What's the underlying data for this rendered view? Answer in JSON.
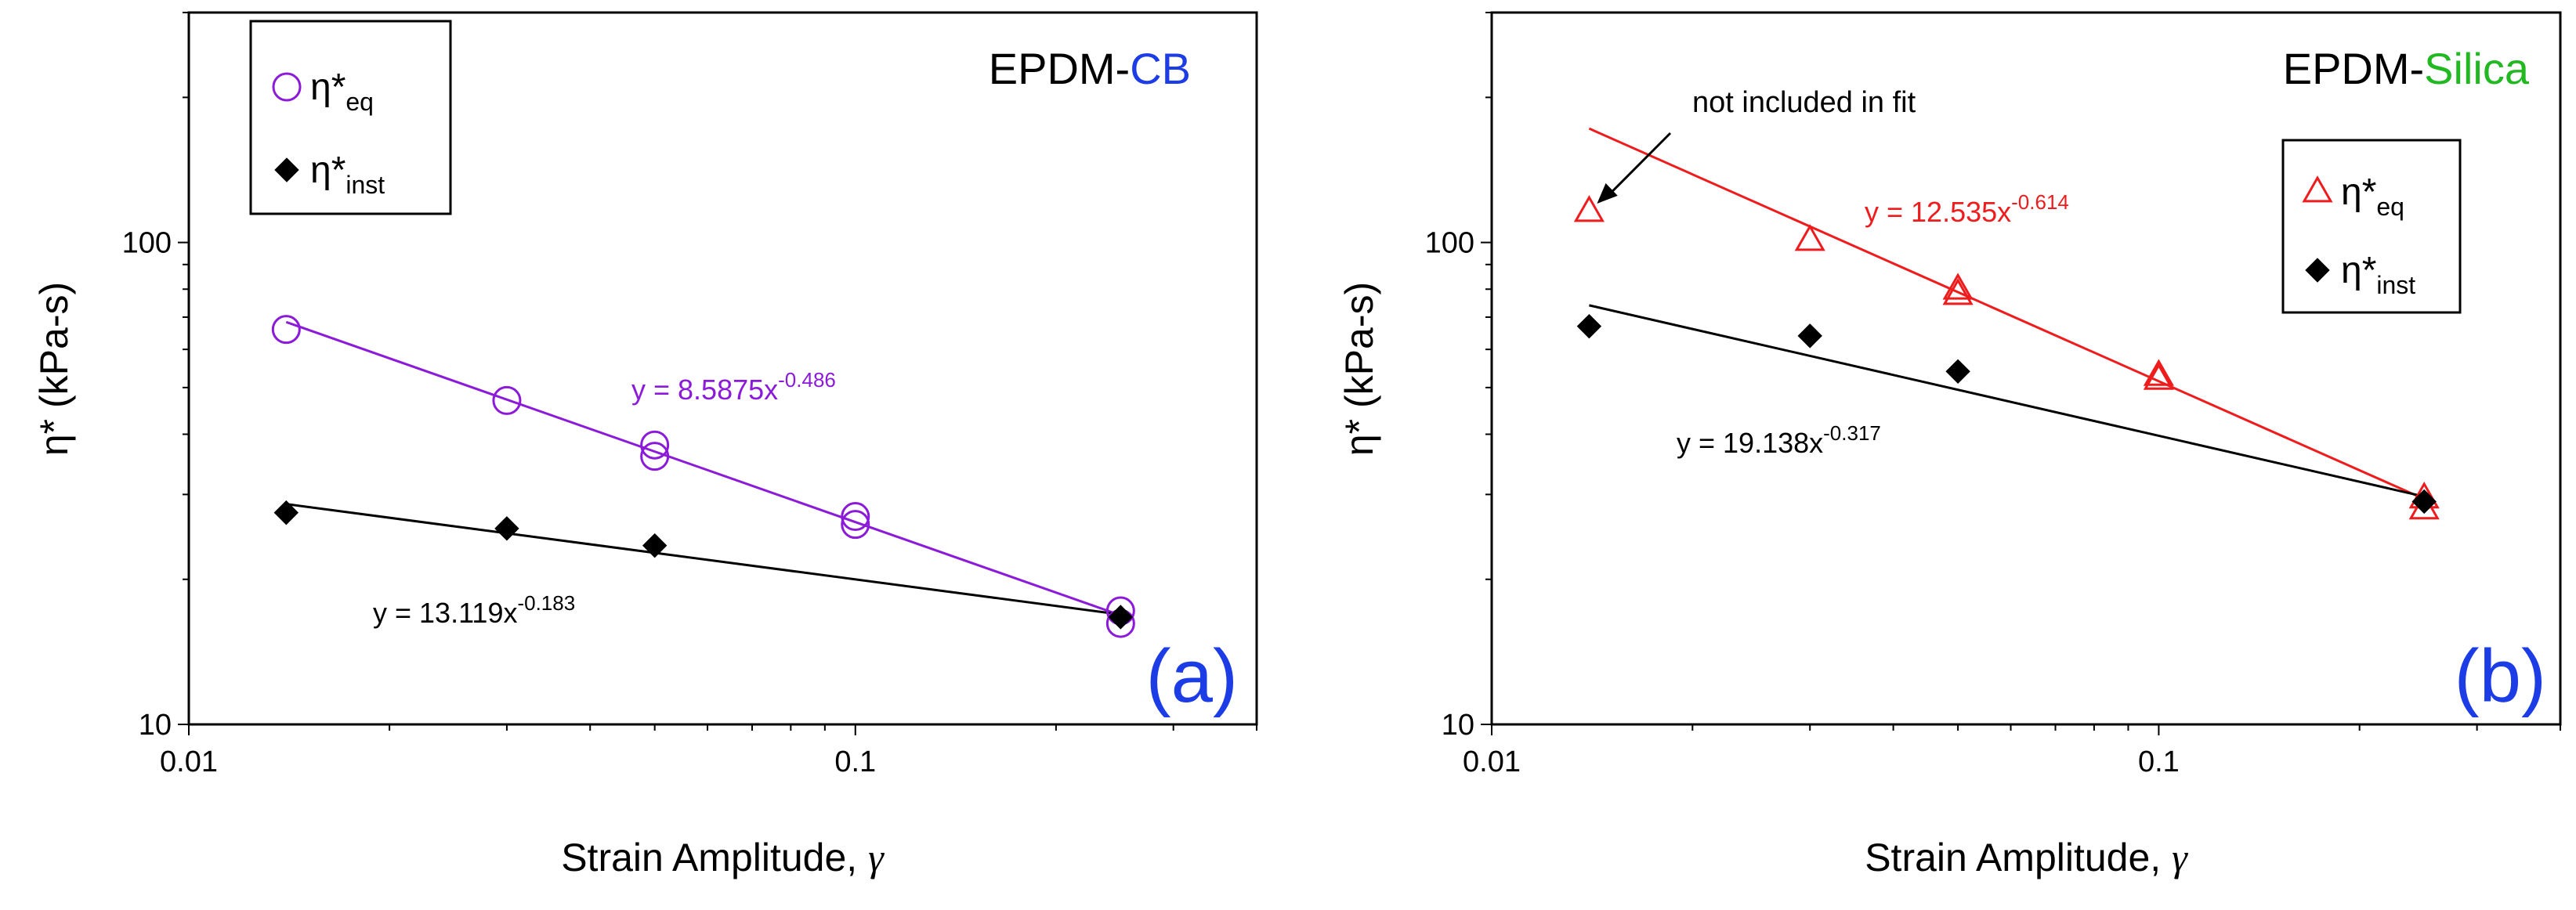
{
  "colors": {
    "purple": "#8c1ad9",
    "red": "#ee1c1c",
    "black": "#000000",
    "blue": "#1c3ce6",
    "green": "#22b822"
  },
  "chart_data": [
    {
      "type": "scatter",
      "scale": "log-log",
      "panel_label": "(a)",
      "title_parts": {
        "base": "EPDM-",
        "filler": "CB"
      },
      "xlabel": {
        "text": "Strain Amplitude, ",
        "symbol": "γ"
      },
      "ylabel": {
        "text": "η*",
        "units": "(kPa-s)"
      },
      "xlim": [
        0.01,
        0.4
      ],
      "ylim": [
        10,
        300
      ],
      "xticks": [
        {
          "v": 0.01,
          "label": "0.01"
        },
        {
          "v": 0.1,
          "label": "0.1"
        }
      ],
      "yticks": [
        {
          "v": 10,
          "label": "10"
        },
        {
          "v": 100,
          "label": "100"
        }
      ],
      "legend": {
        "position": "top-left",
        "entries": [
          {
            "base": "η*",
            "sub": "eq",
            "marker": "circle",
            "series": 0
          },
          {
            "base": "η*",
            "sub": "inst",
            "marker": "diamond",
            "series": 1
          }
        ]
      },
      "series": [
        {
          "name": "η*eq",
          "marker": "circle",
          "color": "#8c1ad9",
          "points": [
            [
              0.014,
              66
            ],
            [
              0.03,
              47
            ],
            [
              0.05,
              38
            ],
            [
              0.05,
              36
            ],
            [
              0.1,
              27
            ],
            [
              0.1,
              26
            ],
            [
              0.25,
              17.2
            ],
            [
              0.25,
              16.2
            ]
          ],
          "fit": {
            "a": 8.5875,
            "b": -0.486,
            "x0": 0.014,
            "x1": 0.25,
            "label_prefix": "y = 8.5875x",
            "label_exp": "-0.486"
          }
        },
        {
          "name": "η*inst",
          "marker": "diamond",
          "color": "#000000",
          "points": [
            [
              0.014,
              27.5
            ],
            [
              0.03,
              25.5
            ],
            [
              0.05,
              23.5
            ],
            [
              0.25,
              16.7
            ]
          ],
          "fit": {
            "a": 13.119,
            "b": -0.183,
            "x0": 0.014,
            "x1": 0.25,
            "label_prefix": "y = 13.119x",
            "label_exp": "-0.183"
          }
        }
      ]
    },
    {
      "type": "scatter",
      "scale": "log-log",
      "panel_label": "(b)",
      "title_parts": {
        "base": "EPDM-",
        "filler": "Silica"
      },
      "xlabel": {
        "text": "Strain Amplitude, ",
        "symbol": "γ"
      },
      "ylabel": {
        "text": "η*",
        "units": "(kPa-s)"
      },
      "xlim": [
        0.01,
        0.4
      ],
      "ylim": [
        10,
        300
      ],
      "xticks": [
        {
          "v": 0.01,
          "label": "0.01"
        },
        {
          "v": 0.1,
          "label": "0.1"
        }
      ],
      "yticks": [
        {
          "v": 10,
          "label": "10"
        },
        {
          "v": 100,
          "label": "100"
        }
      ],
      "annotation": {
        "text": "not included in fit",
        "target": [
          0.014,
          116
        ]
      },
      "legend": {
        "position": "right",
        "entries": [
          {
            "base": "η*",
            "sub": "eq",
            "marker": "triangle",
            "series": 0
          },
          {
            "base": "η*",
            "sub": "inst",
            "marker": "diamond",
            "series": 1
          }
        ]
      },
      "series": [
        {
          "name": "η*eq",
          "marker": "triangle",
          "color": "#ee1c1c",
          "points": [
            [
              0.014,
              116
            ],
            [
              0.03,
              101
            ],
            [
              0.05,
              80
            ],
            [
              0.05,
              78
            ],
            [
              0.1,
              53
            ],
            [
              0.1,
              52
            ],
            [
              0.25,
              29.5
            ],
            [
              0.25,
              28
            ]
          ],
          "fit": {
            "a": 12.535,
            "b": -0.614,
            "x0": 0.014,
            "x1": 0.25,
            "label_prefix": "y = 12.535x",
            "label_exp": "-0.614"
          }
        },
        {
          "name": "η*inst",
          "marker": "diamond",
          "color": "#000000",
          "points": [
            [
              0.014,
              67
            ],
            [
              0.03,
              64
            ],
            [
              0.05,
              54
            ],
            [
              0.25,
              29
            ]
          ],
          "fit": {
            "a": 19.138,
            "b": -0.317,
            "x0": 0.014,
            "x1": 0.25,
            "label_prefix": "y = 19.138x",
            "label_exp": "-0.317"
          }
        }
      ]
    }
  ]
}
